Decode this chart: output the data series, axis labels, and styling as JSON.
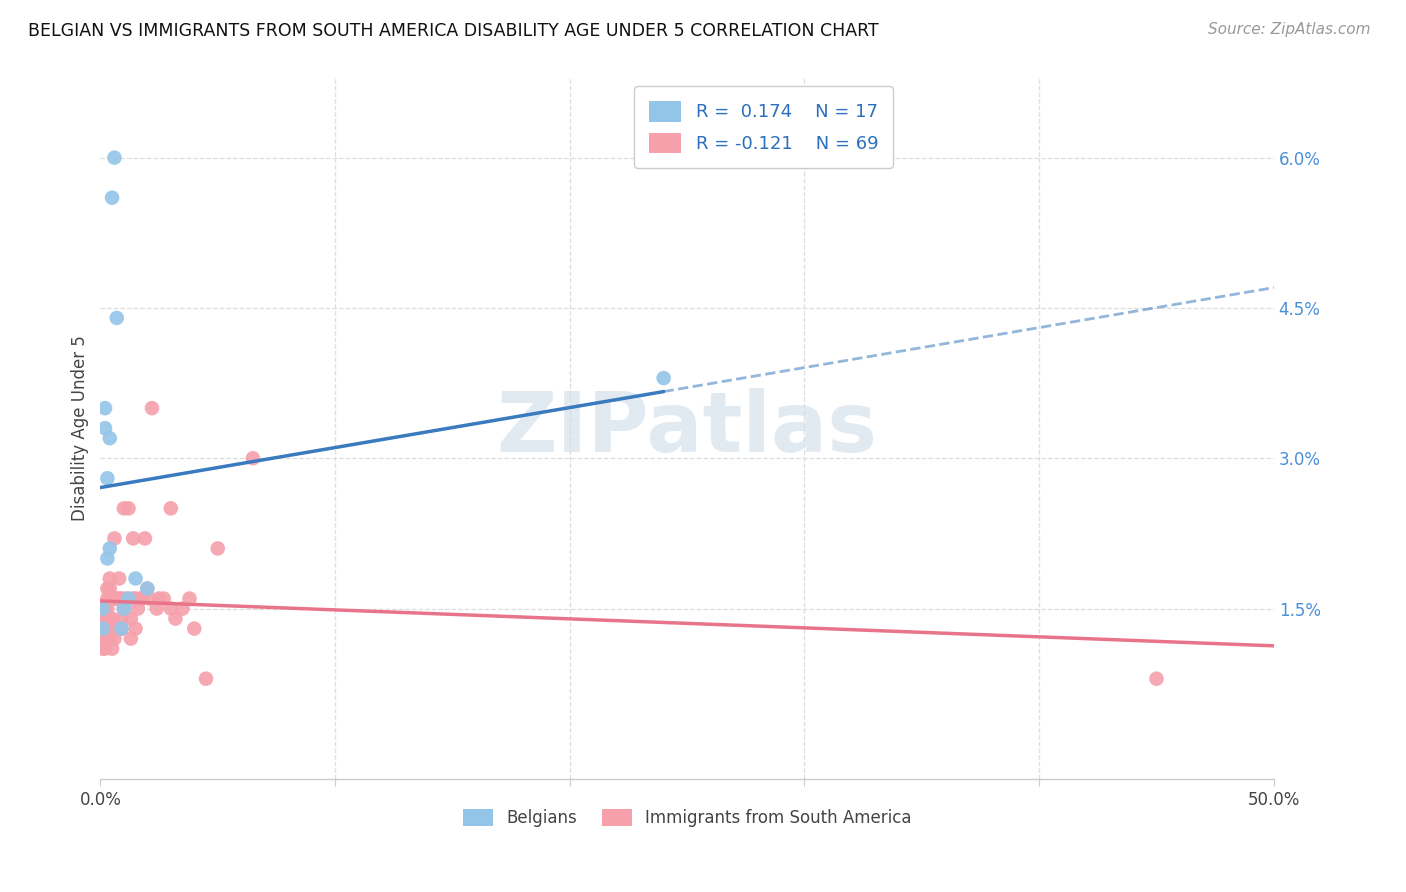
{
  "title": "BELGIAN VS IMMIGRANTS FROM SOUTH AMERICA DISABILITY AGE UNDER 5 CORRELATION CHART",
  "source": "Source: ZipAtlas.com",
  "ylabel": "Disability Age Under 5",
  "xlim": [
    0.0,
    0.5
  ],
  "ylim": [
    -0.002,
    0.068
  ],
  "blue_color": "#93c5e8",
  "pink_color": "#f5a0aa",
  "blue_line_color": "#3a7abf",
  "pink_line_color": "#e8748a",
  "watermark_text": "ZIPatlas",
  "legend_r_blue": "R =  0.174",
  "legend_n_blue": "N = 17",
  "legend_r_pink": "R = -0.121",
  "legend_n_pink": "N = 69",
  "belgians_x": [
    0.001,
    0.001,
    0.002,
    0.002,
    0.003,
    0.003,
    0.004,
    0.004,
    0.005,
    0.006,
    0.007,
    0.009,
    0.01,
    0.012,
    0.015,
    0.02,
    0.24
  ],
  "belgians_y": [
    0.013,
    0.015,
    0.033,
    0.035,
    0.02,
    0.028,
    0.032,
    0.021,
    0.056,
    0.06,
    0.044,
    0.013,
    0.015,
    0.016,
    0.018,
    0.017,
    0.038
  ],
  "immigrants_x": [
    0.001,
    0.001,
    0.001,
    0.001,
    0.001,
    0.001,
    0.001,
    0.002,
    0.002,
    0.002,
    0.002,
    0.002,
    0.002,
    0.003,
    0.003,
    0.003,
    0.003,
    0.003,
    0.003,
    0.004,
    0.004,
    0.004,
    0.004,
    0.004,
    0.005,
    0.005,
    0.005,
    0.006,
    0.006,
    0.006,
    0.006,
    0.007,
    0.007,
    0.008,
    0.008,
    0.008,
    0.009,
    0.009,
    0.009,
    0.01,
    0.01,
    0.011,
    0.012,
    0.013,
    0.013,
    0.014,
    0.014,
    0.015,
    0.015,
    0.016,
    0.017,
    0.018,
    0.019,
    0.02,
    0.021,
    0.022,
    0.024,
    0.025,
    0.027,
    0.03,
    0.03,
    0.032,
    0.035,
    0.038,
    0.04,
    0.045,
    0.05,
    0.065,
    0.45
  ],
  "immigrants_y": [
    0.013,
    0.013,
    0.013,
    0.012,
    0.014,
    0.012,
    0.011,
    0.013,
    0.013,
    0.012,
    0.014,
    0.011,
    0.015,
    0.013,
    0.013,
    0.014,
    0.015,
    0.016,
    0.017,
    0.013,
    0.012,
    0.016,
    0.017,
    0.018,
    0.014,
    0.013,
    0.011,
    0.012,
    0.016,
    0.022,
    0.016,
    0.013,
    0.016,
    0.013,
    0.018,
    0.016,
    0.013,
    0.014,
    0.016,
    0.015,
    0.025,
    0.016,
    0.025,
    0.014,
    0.012,
    0.016,
    0.022,
    0.016,
    0.013,
    0.015,
    0.016,
    0.016,
    0.022,
    0.017,
    0.016,
    0.035,
    0.015,
    0.016,
    0.016,
    0.015,
    0.025,
    0.014,
    0.015,
    0.016,
    0.013,
    0.008,
    0.021,
    0.03,
    0.008
  ]
}
